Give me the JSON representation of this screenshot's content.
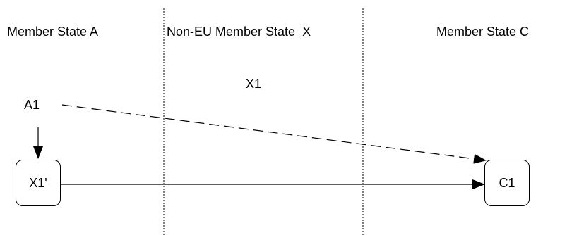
{
  "regions": [
    {
      "id": "a",
      "label": "Member State A"
    },
    {
      "id": "x",
      "label": "Non-EU Member State  X"
    },
    {
      "id": "c",
      "label": "Member State C"
    }
  ],
  "nodes": {
    "x1_label": "X1",
    "a1": "A1",
    "x1_prime": "X1'",
    "c1": "C1"
  },
  "colors": {
    "line": "#000000",
    "background": "#ffffff"
  }
}
